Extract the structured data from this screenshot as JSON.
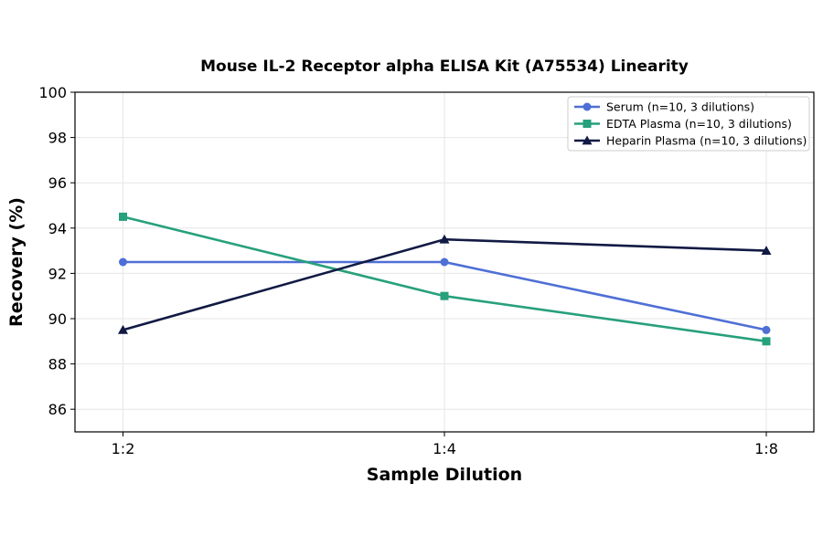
{
  "chart_data": {
    "type": "line",
    "title": "Mouse IL-2 Receptor alpha ELISA Kit (A75534) Linearity",
    "xlabel": "Sample Dilution",
    "ylabel": "Recovery (%)",
    "categories": [
      "1:2",
      "1:4",
      "1:8"
    ],
    "ylim": [
      85,
      100
    ],
    "yticks": [
      86,
      88,
      90,
      92,
      94,
      96,
      98,
      100
    ],
    "grid": true,
    "legend_position": "top-right",
    "series": [
      {
        "name": "Serum (n=10, 3 dilutions)",
        "values": [
          92.5,
          92.5,
          89.5
        ],
        "color": "#4f6fd6",
        "marker": "circle"
      },
      {
        "name": "EDTA Plasma (n=10, 3 dilutions)",
        "values": [
          94.5,
          91.0,
          89.0
        ],
        "color": "#27a07c",
        "marker": "square"
      },
      {
        "name": "Heparin Plasma (n=10, 3 dilutions)",
        "values": [
          89.5,
          93.5,
          93.0
        ],
        "color": "#111a44",
        "marker": "triangle"
      }
    ]
  }
}
